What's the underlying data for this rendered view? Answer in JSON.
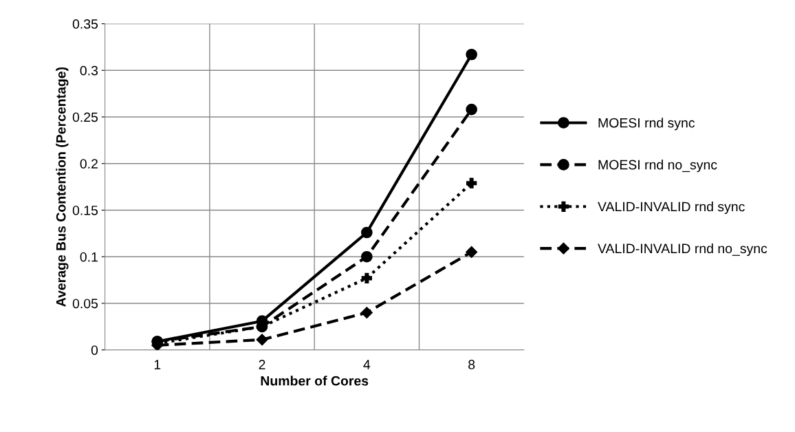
{
  "chart_data": {
    "type": "line",
    "xlabel": "Number of Cores",
    "ylabel": "Average Bus Contention (Percentage)",
    "categories": [
      "1",
      "2",
      "4",
      "8"
    ],
    "series": [
      {
        "name": "MOESI rnd sync",
        "color": "#000000",
        "marker": "circle",
        "line_style": "solid",
        "values": [
          0.009,
          0.031,
          0.126,
          0.317
        ]
      },
      {
        "name": "MOESI rnd no_sync",
        "color": "#000000",
        "marker": "circle",
        "line_style": "dashed",
        "values": [
          0.009,
          0.025,
          0.1,
          0.258
        ]
      },
      {
        "name": "VALID-INVALID rnd sync",
        "color": "#000000",
        "marker": "cross",
        "line_style": "dotted",
        "values": [
          0.007,
          0.025,
          0.077,
          0.179
        ]
      },
      {
        "name": "VALID-INVALID rnd no_sync",
        "color": "#000000",
        "marker": "diamond",
        "line_style": "dashed",
        "values": [
          0.005,
          0.011,
          0.04,
          0.105
        ]
      }
    ],
    "ylim": [
      0,
      0.35
    ],
    "yticks": [
      0,
      0.05,
      0.1,
      0.15,
      0.2,
      0.25,
      0.3,
      0.35
    ],
    "grid": true,
    "legend": "right"
  }
}
